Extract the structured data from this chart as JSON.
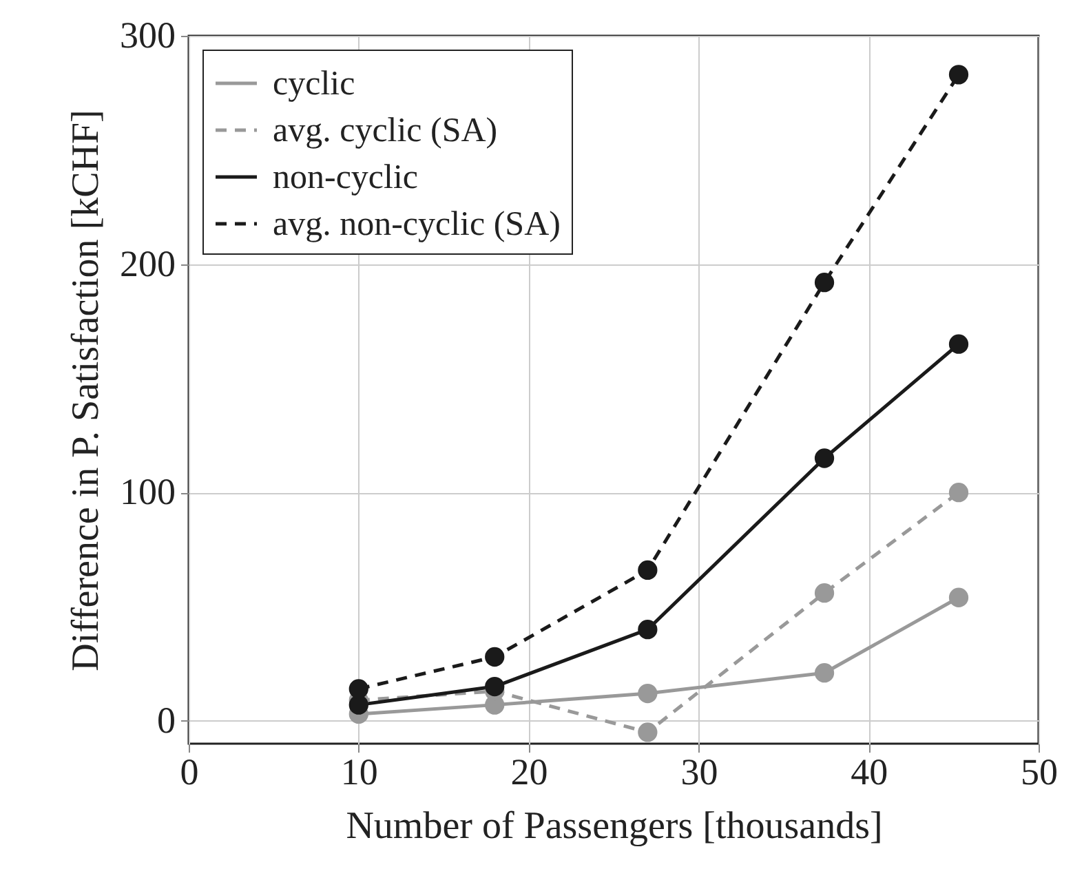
{
  "chart_data": {
    "type": "line",
    "xlabel": "Number of Passengers [thousands]",
    "ylabel": "Difference in P. Satisfaction [kCHF]",
    "x": [
      10,
      18,
      27,
      37.4,
      45.3
    ],
    "series": [
      {
        "name": "cyclic",
        "color": "#999999",
        "line_style": "solid",
        "values": [
          3,
          7,
          12,
          21,
          54
        ]
      },
      {
        "name": "avg. cyclic (SA)",
        "color": "#999999",
        "line_style": "dashed",
        "values": [
          9,
          13,
          -5,
          56,
          100
        ]
      },
      {
        "name": "non-cyclic",
        "color": "#1a1a1a",
        "line_style": "solid",
        "values": [
          7,
          15,
          40,
          115,
          165
        ]
      },
      {
        "name": "avg. non-cyclic (SA)",
        "color": "#1a1a1a",
        "line_style": "dashed",
        "values": [
          14,
          28,
          66,
          192,
          283
        ]
      }
    ],
    "xlim": [
      0,
      50
    ],
    "xticks": [
      0,
      10,
      20,
      30,
      40,
      50
    ],
    "ylim": [
      -10,
      300
    ],
    "yticks": [
      0,
      100,
      200,
      300
    ],
    "grid": true,
    "legend": "top left",
    "marker": "circle"
  }
}
